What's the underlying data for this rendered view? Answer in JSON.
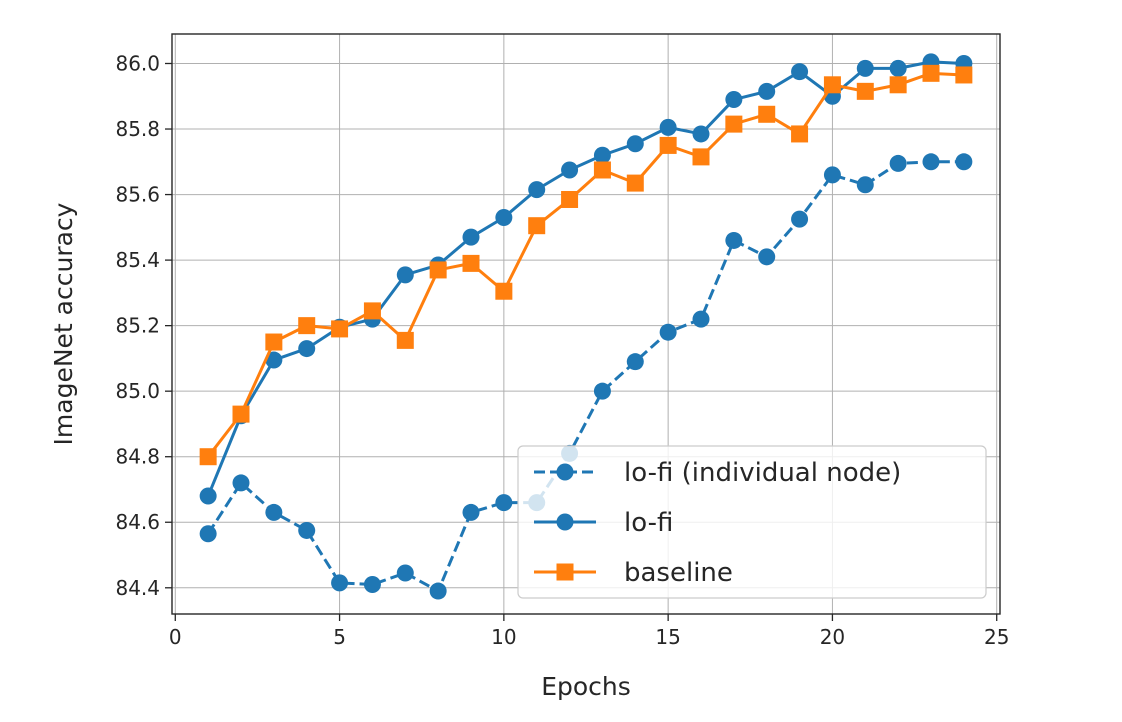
{
  "chart_data": {
    "type": "line",
    "xlabel": "Epochs",
    "ylabel": "ImageNet accuracy",
    "xlim": [
      -0.1,
      25.1
    ],
    "ylim": [
      84.32,
      86.09
    ],
    "xticks": [
      0,
      5,
      10,
      15,
      20,
      25
    ],
    "yticks": [
      84.4,
      84.6,
      84.8,
      85.0,
      85.2,
      85.4,
      85.6,
      85.8,
      86.0
    ],
    "grid": true,
    "legend_position": "lower right",
    "series": [
      {
        "name": "lo-fi (individual node)",
        "color": "#1f77b4",
        "line_style": "dashed",
        "marker": "circle",
        "x": [
          1,
          2,
          3,
          4,
          5,
          6,
          7,
          8,
          9,
          10,
          11,
          12,
          13,
          14,
          15,
          16,
          17,
          18,
          19,
          20,
          21,
          22,
          23,
          24
        ],
        "y": [
          84.565,
          84.72,
          84.63,
          84.575,
          84.415,
          84.41,
          84.445,
          84.39,
          84.63,
          84.66,
          84.66,
          84.81,
          85.0,
          85.09,
          85.18,
          85.22,
          85.46,
          85.41,
          85.525,
          85.66,
          85.63,
          85.695,
          85.7,
          85.7
        ]
      },
      {
        "name": "lo-fi",
        "color": "#1f77b4",
        "line_style": "solid",
        "marker": "circle",
        "x": [
          1,
          2,
          3,
          4,
          5,
          6,
          7,
          8,
          9,
          10,
          11,
          12,
          13,
          14,
          15,
          16,
          17,
          18,
          19,
          20,
          21,
          22,
          23,
          24
        ],
        "y": [
          84.68,
          84.925,
          85.095,
          85.13,
          85.195,
          85.22,
          85.355,
          85.385,
          85.47,
          85.53,
          85.615,
          85.675,
          85.72,
          85.755,
          85.805,
          85.785,
          85.89,
          85.915,
          85.975,
          85.9,
          85.985,
          85.985,
          86.005,
          86.0
        ]
      },
      {
        "name": "baseline",
        "color": "#ff7f0e",
        "line_style": "solid",
        "marker": "square",
        "x": [
          1,
          2,
          3,
          4,
          5,
          6,
          7,
          8,
          9,
          10,
          11,
          12,
          13,
          14,
          15,
          16,
          17,
          18,
          19,
          20,
          21,
          22,
          23,
          24
        ],
        "y": [
          84.8,
          84.93,
          85.15,
          85.2,
          85.19,
          85.245,
          85.155,
          85.37,
          85.39,
          85.305,
          85.505,
          85.585,
          85.675,
          85.635,
          85.75,
          85.715,
          85.815,
          85.845,
          85.785,
          85.935,
          85.915,
          85.935,
          85.97,
          85.965
        ]
      }
    ]
  }
}
